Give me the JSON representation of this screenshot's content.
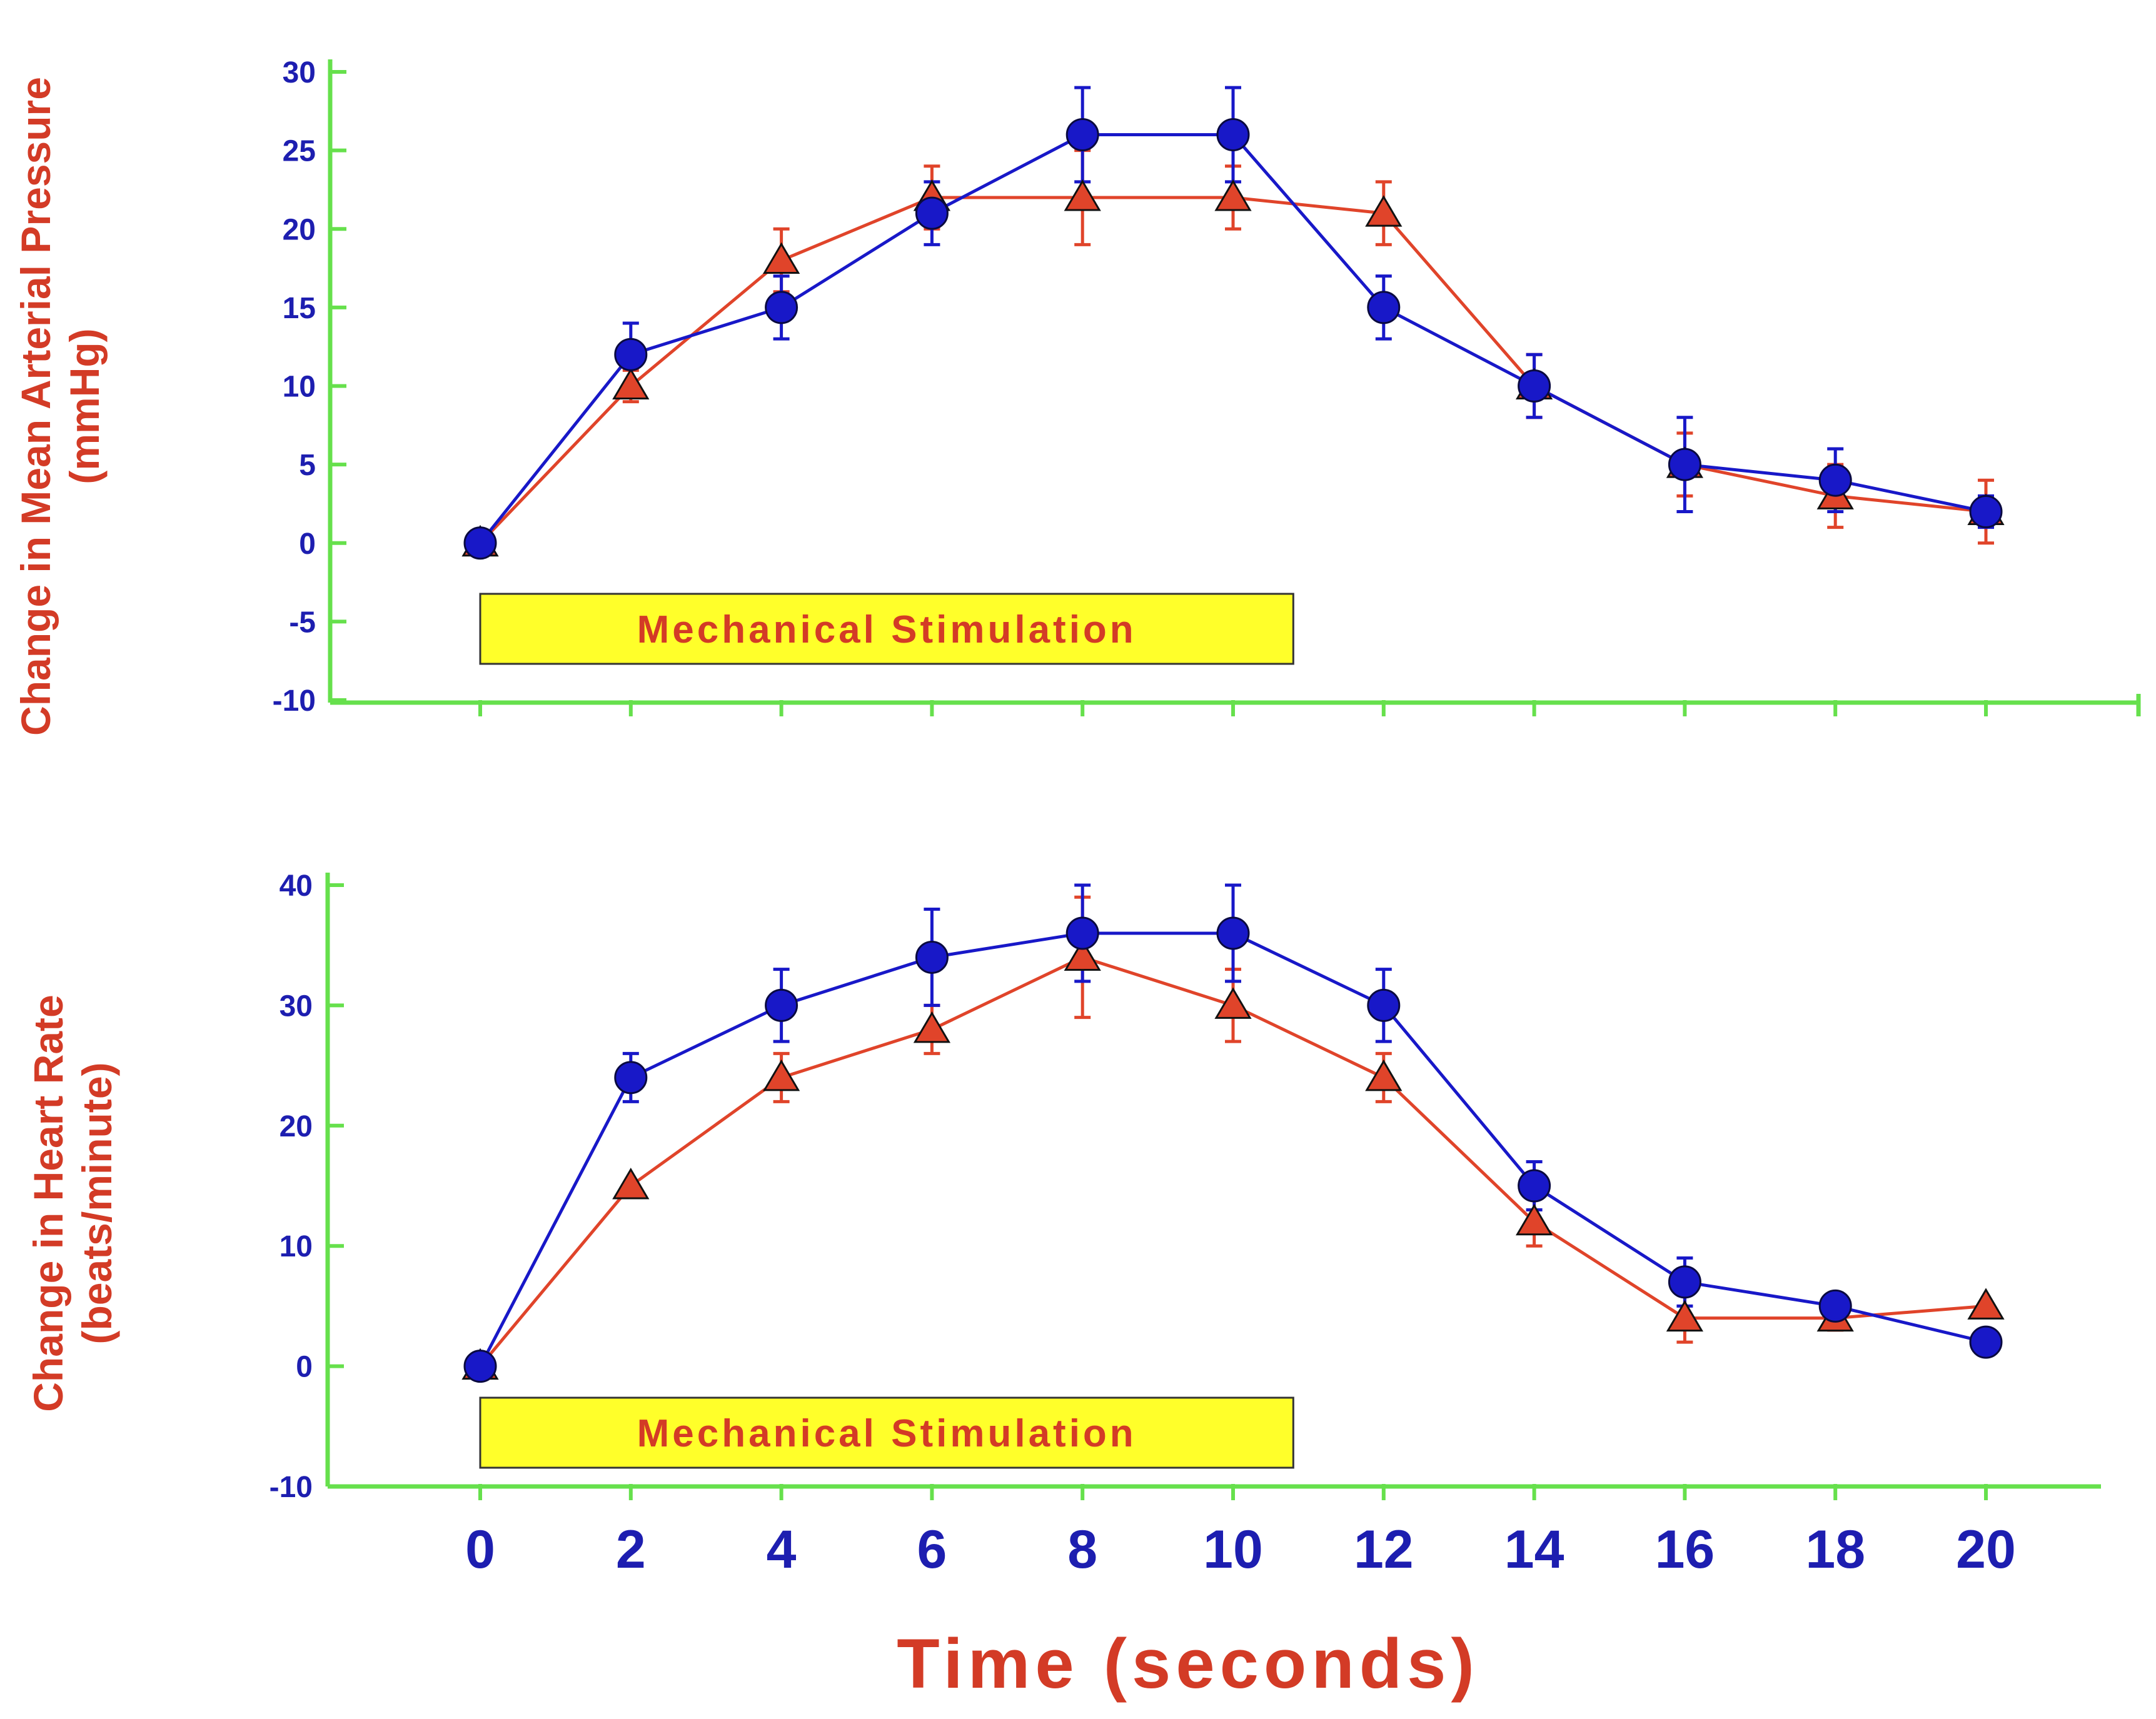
{
  "colors": {
    "axis": "#66e04c",
    "tick_label": "#1d1eb0",
    "axis_title": "#d33b26",
    "series_circle": "#1818c8",
    "series_triangle": "#e0442a",
    "stim_fill": "#ffff2a",
    "stim_text": "#d33b26"
  },
  "x_axis": {
    "ticks": [
      "0",
      "2",
      "4",
      "6",
      "8",
      "10",
      "12",
      "14",
      "16",
      "18",
      "20"
    ],
    "label": "Time (seconds)"
  },
  "chart_data": [
    {
      "type": "line",
      "ylabel_line1": "Change in Mean Arterial Pressure",
      "ylabel_line2": "(mmHg)",
      "ylim": [
        -10,
        30
      ],
      "yticks": [
        "30",
        "25",
        "20",
        "15",
        "10",
        "5",
        "0",
        "-5",
        "-10"
      ],
      "x": [
        0,
        2,
        4,
        6,
        8,
        10,
        12,
        14,
        16,
        18,
        20
      ],
      "series": [
        {
          "marker": "circle",
          "values": [
            0,
            12,
            15,
            21,
            26,
            26,
            15,
            10,
            5,
            4,
            2
          ],
          "err": [
            0,
            2,
            2,
            2,
            3,
            3,
            2,
            2,
            3,
            2,
            1
          ]
        },
        {
          "marker": "triangle",
          "values": [
            0,
            10,
            18,
            22,
            22,
            22,
            21,
            10,
            5,
            3,
            2
          ],
          "err": [
            0,
            1,
            2,
            2,
            3,
            2,
            2,
            2,
            2,
            2,
            2
          ]
        }
      ],
      "annotation": "Mechanical Stimulation",
      "annotation_span": [
        0,
        10.8
      ]
    },
    {
      "type": "line",
      "ylabel_line1": "Change in Heart Rate",
      "ylabel_line2": "(beats/minute)",
      "ylim": [
        -10,
        40
      ],
      "yticks": [
        "40",
        "30",
        "20",
        "10",
        "0",
        "-10"
      ],
      "x": [
        0,
        2,
        4,
        6,
        8,
        10,
        12,
        14,
        16,
        18,
        20
      ],
      "series": [
        {
          "marker": "circle",
          "values": [
            0,
            24,
            30,
            34,
            36,
            36,
            30,
            15,
            7,
            5,
            2
          ],
          "err": [
            0,
            2,
            3,
            4,
            4,
            4,
            3,
            2,
            2,
            0,
            0
          ]
        },
        {
          "marker": "triangle",
          "values": [
            0,
            15,
            24,
            28,
            34,
            30,
            24,
            12,
            4,
            4,
            5
          ],
          "err": [
            0,
            0,
            2,
            2,
            5,
            3,
            2,
            2,
            2,
            1,
            0
          ]
        }
      ],
      "annotation": "Mechanical Stimulation",
      "annotation_span": [
        0,
        10.8
      ]
    }
  ]
}
